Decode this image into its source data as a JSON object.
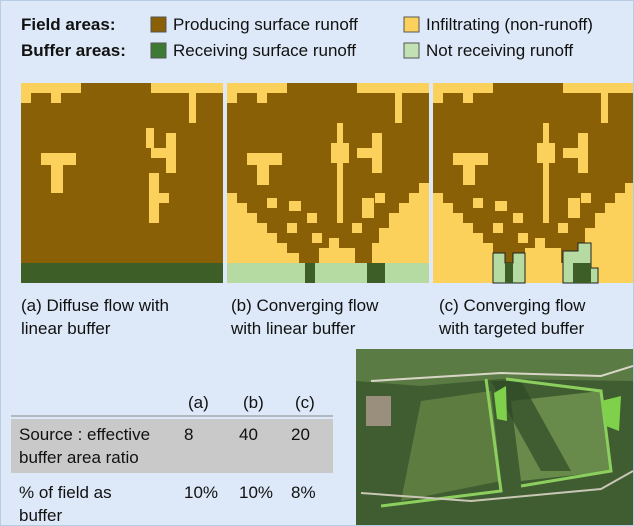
{
  "legend": {
    "field_label": "Field areas:",
    "buffer_label": "Buffer areas:",
    "items": [
      "Producing surface runoff",
      "Infiltrating (non-runoff)",
      "Receiving surface runoff",
      "Not receiving runoff"
    ]
  },
  "panels": [
    {
      "caption": [
        "(a) Diffuse flow with",
        "linear buffer"
      ]
    },
    {
      "caption": [
        "(b) Converging flow",
        "with linear buffer"
      ]
    },
    {
      "caption": [
        "(c) Converging flow",
        "with targeted buffer"
      ]
    }
  ],
  "table": {
    "header": [
      "(a)",
      "(b)",
      "(c)"
    ],
    "rows": [
      {
        "label": [
          "Source : effective",
          "buffer area ratio"
        ],
        "cells": [
          "8",
          "40",
          "20"
        ]
      },
      {
        "label": [
          "% of field as",
          "buffer"
        ],
        "cells": [
          "10%",
          "10%",
          "8%"
        ]
      }
    ]
  }
}
